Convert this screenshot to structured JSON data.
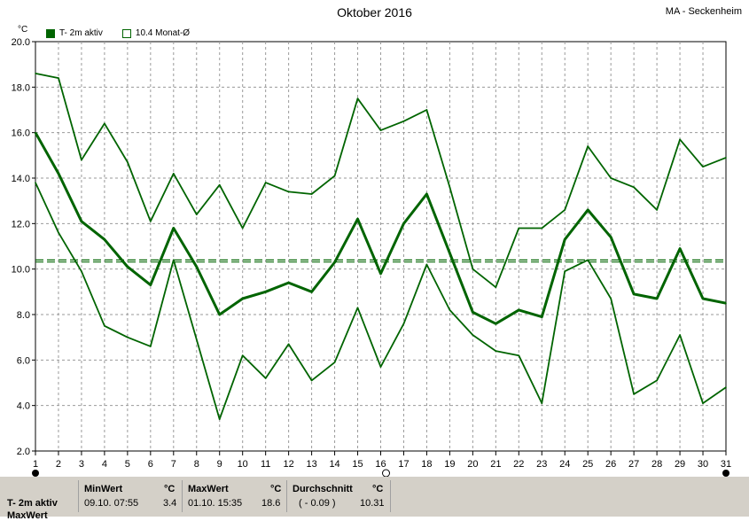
{
  "header": {
    "title": "Oktober 2016",
    "station": "MA - Seckenheim",
    "unit": "°C"
  },
  "legend": {
    "series_label": "T- 2m aktiv",
    "mean_label": "10.4 Monat-Ø"
  },
  "colors": {
    "series": "#006400",
    "grid": "#9a9a9a",
    "stats_bg": "#d4d0c8"
  },
  "chart_data": {
    "type": "line",
    "title": "Oktober 2016",
    "ylabel": "°C",
    "ylim": [
      2.0,
      20.0
    ],
    "yticks": [
      "2.0",
      "4.0",
      "6.0",
      "8.0",
      "10.0",
      "12.0",
      "14.0",
      "16.0",
      "18.0",
      "20.0"
    ],
    "x": [
      1,
      2,
      3,
      4,
      5,
      6,
      7,
      8,
      9,
      10,
      11,
      12,
      13,
      14,
      15,
      16,
      17,
      18,
      19,
      20,
      21,
      22,
      23,
      24,
      25,
      26,
      27,
      28,
      29,
      30,
      31
    ],
    "grid": true,
    "series": [
      {
        "role": "max",
        "values": [
          18.6,
          18.4,
          14.8,
          16.4,
          14.7,
          12.1,
          14.2,
          12.4,
          13.7,
          11.8,
          13.8,
          13.4,
          13.3,
          14.1,
          17.5,
          16.1,
          16.5,
          17.0,
          13.6,
          10.0,
          9.2,
          11.8,
          11.8,
          12.6,
          15.4,
          14.0,
          13.6,
          12.6,
          15.7,
          14.5,
          14.9
        ]
      },
      {
        "role": "mean",
        "values": [
          16.0,
          14.2,
          12.1,
          11.3,
          10.1,
          9.3,
          11.8,
          10.1,
          8.0,
          8.7,
          9.0,
          9.4,
          9.0,
          10.3,
          12.2,
          9.8,
          12.0,
          13.3,
          10.7,
          8.1,
          7.6,
          8.2,
          7.9,
          11.3,
          12.6,
          11.4,
          8.9,
          8.7,
          10.9,
          8.7,
          8.5
        ]
      },
      {
        "role": "min",
        "values": [
          13.8,
          11.6,
          9.9,
          7.5,
          7.0,
          6.6,
          10.4,
          6.9,
          3.4,
          6.2,
          5.2,
          6.7,
          5.1,
          5.9,
          8.3,
          5.7,
          7.6,
          10.2,
          8.2,
          7.1,
          6.4,
          6.2,
          4.1,
          9.9,
          10.4,
          8.7,
          4.5,
          5.1,
          7.1,
          4.1,
          4.8
        ]
      }
    ],
    "reference_lines": [
      10.31,
      10.4
    ]
  },
  "stats": {
    "row1_label": "T- 2m aktiv",
    "row2_label": "MaxWert",
    "min_header": "MinWert",
    "min_unit": "°C",
    "min_time": "09.10.  07:55",
    "min_value": "3.4",
    "max_header": "MaxWert",
    "max_unit": "°C",
    "max_time": "01.10.  15:35",
    "max_value": "18.6",
    "avg_header": "Durchschnitt",
    "avg_unit": "°C",
    "avg_dev": "( - 0.09 )",
    "avg_value": "10.31"
  }
}
